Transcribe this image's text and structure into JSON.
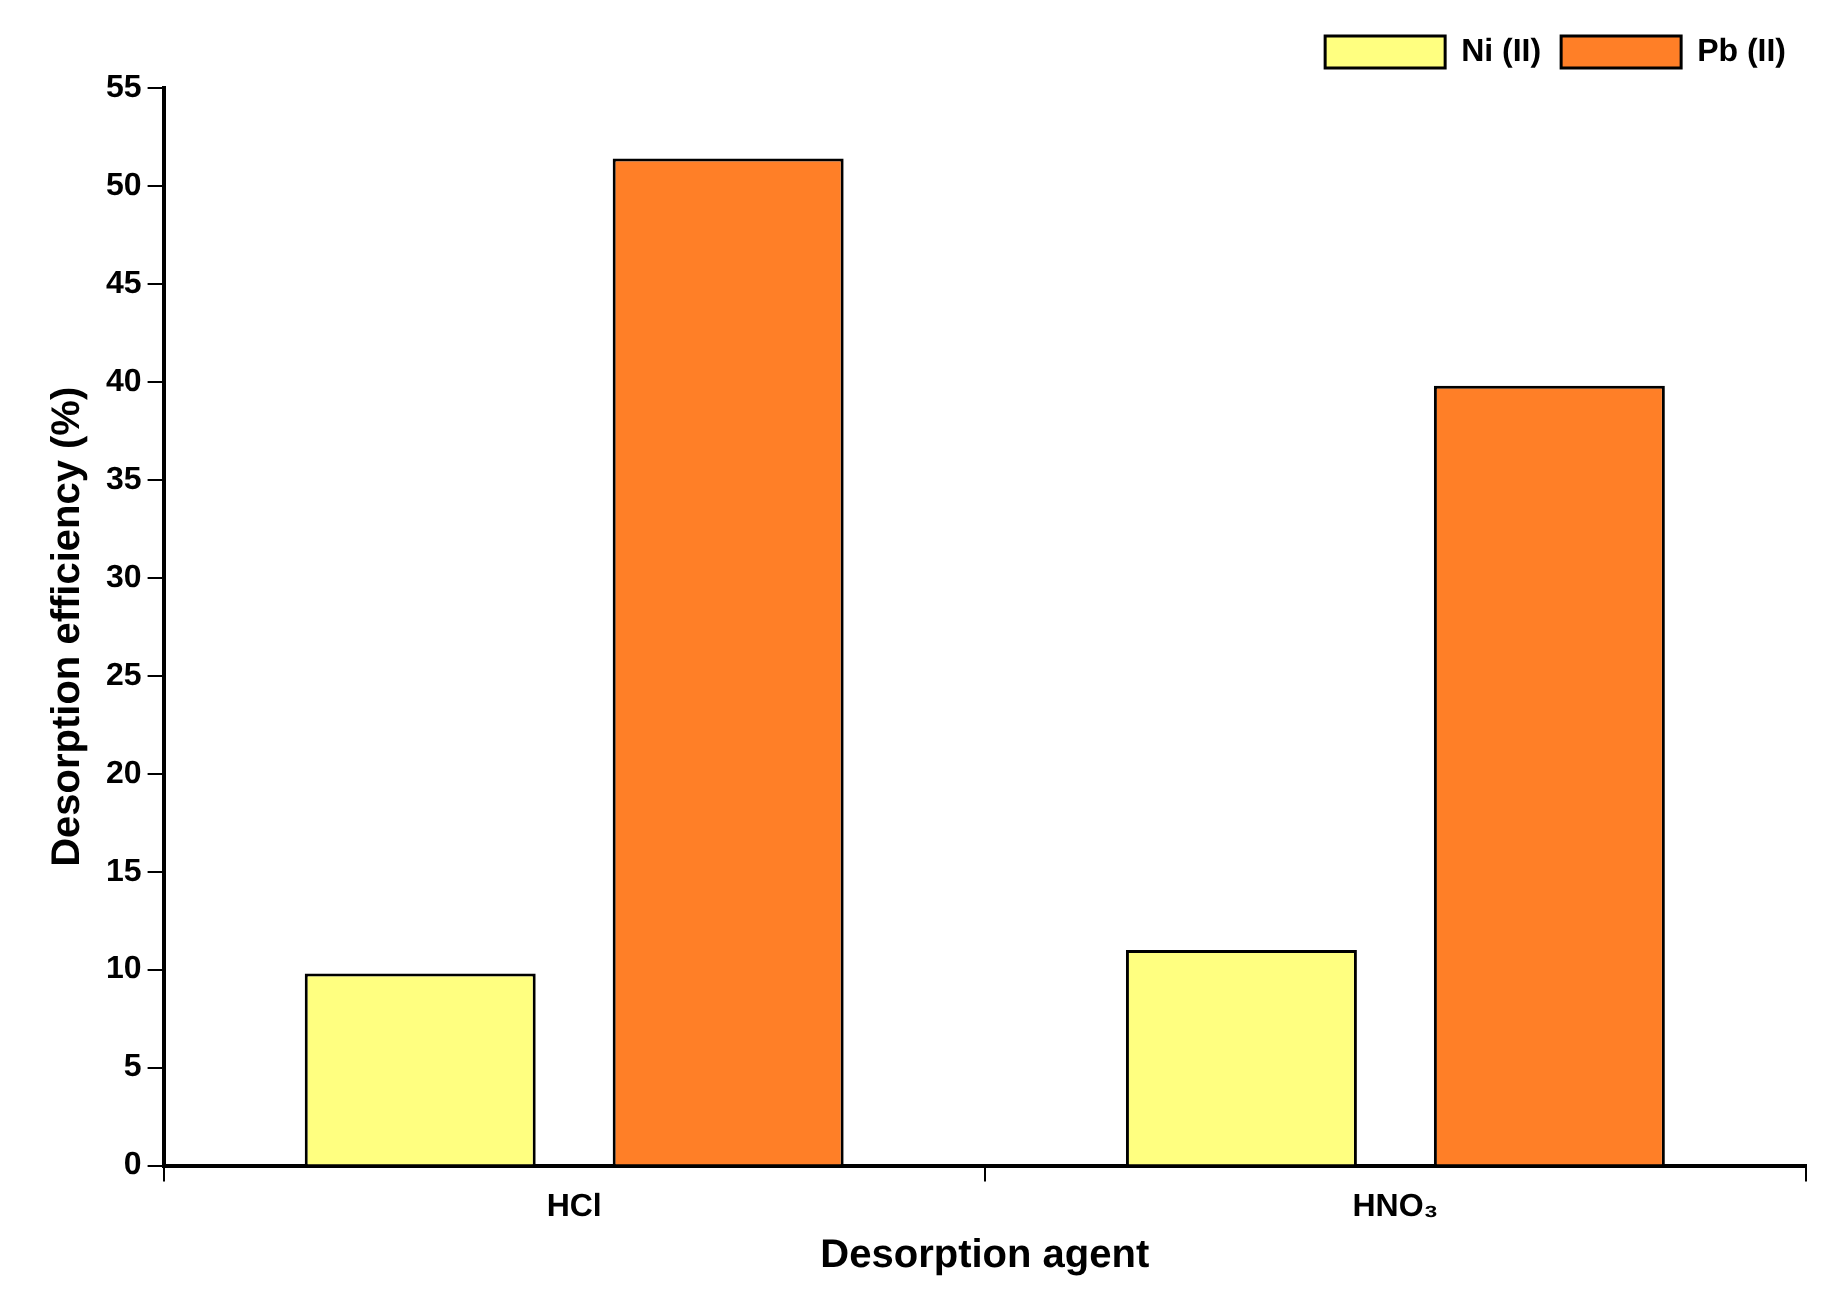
{
  "chart_data": {
    "type": "bar",
    "xlabel": "Desorption agent",
    "ylabel": "Desorption efficiency (%)",
    "categories": [
      "HCl",
      "HNO₃"
    ],
    "series": [
      {
        "name": "Ni (II)",
        "color": "#ffff80",
        "values": [
          9.8,
          11.0
        ]
      },
      {
        "name": "Pb (II)",
        "color": "#ff7f27",
        "values": [
          51.4,
          39.8
        ]
      }
    ],
    "ylim": [
      0,
      55
    ],
    "yticks": [
      0,
      5,
      10,
      15,
      20,
      25,
      30,
      35,
      40,
      45,
      50,
      55
    ],
    "grid": false,
    "legend": "top right"
  }
}
